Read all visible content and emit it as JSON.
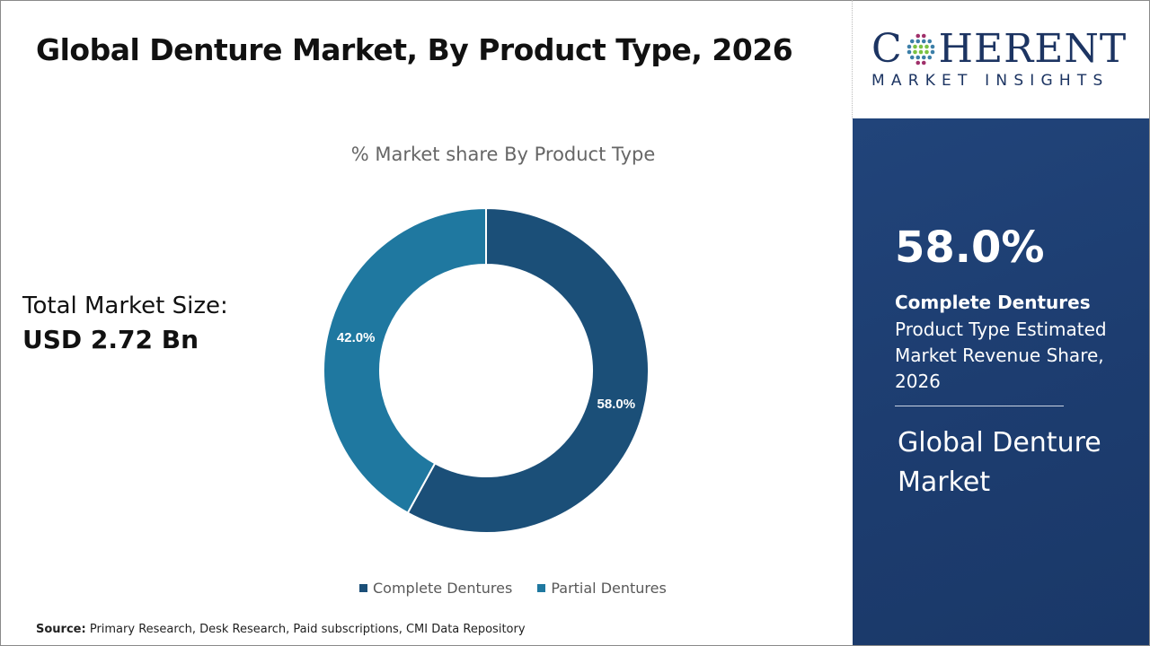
{
  "header": {
    "title": "Global Denture Market, By Product Type, 2026"
  },
  "market_size": {
    "label": "Total Market Size:",
    "value": "USD 2.72 Bn"
  },
  "logo": {
    "line1": "COHERENT",
    "line2": "MARKET INSIGHTS"
  },
  "highlight": {
    "percent": "58.0%",
    "segment": "Complete Dentures",
    "description": "Product Type Estimated Market Revenue Share, 2026",
    "market_name": "Global Denture Market",
    "panel_color": "#1e3f72"
  },
  "source": {
    "label": "Source:",
    "text": "Primary Research, Desk Research, Paid subscriptions, CMI Data Repository"
  },
  "chart_data": {
    "type": "pie",
    "variant": "donut",
    "title": "% Market share By Product Type",
    "categories": [
      "Complete Dentures",
      "Partial Dentures"
    ],
    "values": [
      58.0,
      42.0
    ],
    "data_labels": [
      "58.0%",
      "42.0%"
    ],
    "colors": [
      "#1b4f78",
      "#1f78a0"
    ],
    "legend_placement": "bottom",
    "start_angle": "12 o'clock, clockwise"
  }
}
